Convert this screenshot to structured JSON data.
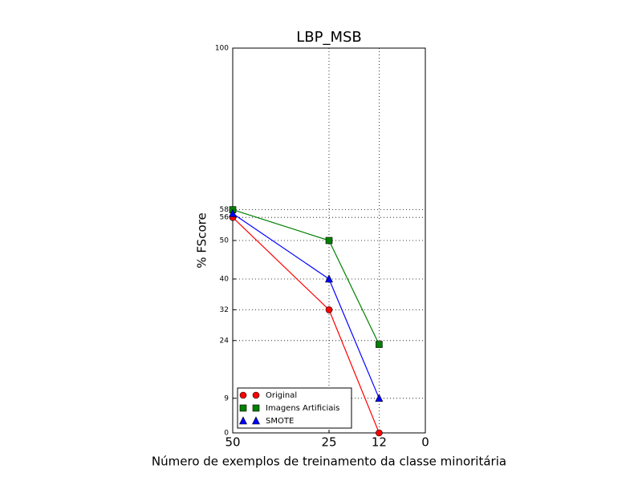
{
  "chart_data": {
    "type": "line",
    "title": "LBP_MSB",
    "x_label": "Número de exemplos de treinamento da classe minoritária",
    "y_label": "% FScore",
    "x": [
      50,
      25,
      12
    ],
    "series": [
      {
        "name": "Original",
        "color": "#ff0000",
        "marker": "circle",
        "values": [
          56,
          32,
          0
        ]
      },
      {
        "name": "Imagens Artificiais",
        "color": "#008000",
        "marker": "square",
        "values": [
          58,
          50,
          23
        ]
      },
      {
        "name": "SMOTE",
        "color": "#0000ff",
        "marker": "triangle",
        "values": [
          57,
          40,
          9
        ]
      }
    ],
    "xlim": [
      50,
      0
    ],
    "xticks": [
      50,
      25,
      12,
      0
    ],
    "ylim": [
      0,
      100
    ],
    "yticks": [
      0,
      9,
      24,
      32,
      40,
      50,
      56,
      58,
      100
    ],
    "grid": true,
    "legend": "lower left"
  }
}
